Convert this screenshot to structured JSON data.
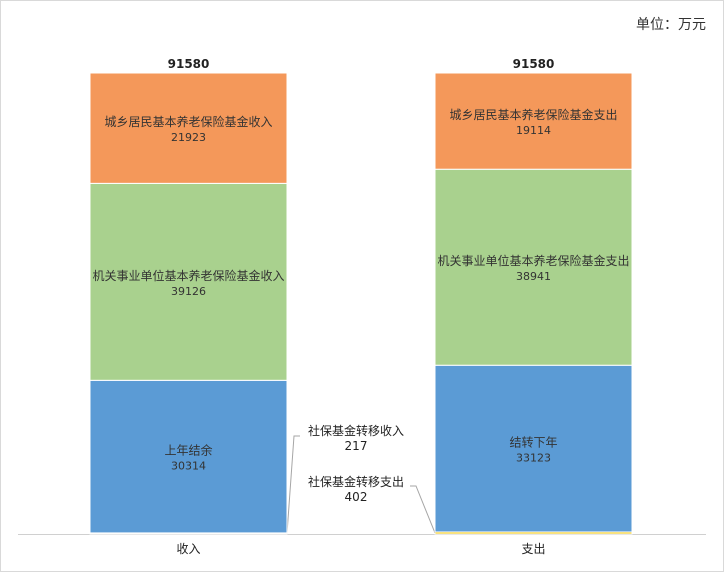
{
  "unit_label": "单位：万元",
  "chart_data": {
    "type": "bar",
    "stacked": true,
    "categories": [
      "收入",
      "支出"
    ],
    "totals": [
      "91580",
      "91580"
    ],
    "ylim": [
      0,
      91580
    ],
    "grid": false,
    "stacks": [
      {
        "category": "收入",
        "segments": [
          {
            "label": "社保基金转移收入",
            "value": 217,
            "color": "#f2c500",
            "callout": true
          },
          {
            "label": "上年结余",
            "value": 30314,
            "color": "#5b9bd5"
          },
          {
            "label": "机关事业单位基本养老保险基金收入",
            "value": 39126,
            "color": "#a9d18e"
          },
          {
            "label": "城乡居民基本养老保险基金收入",
            "value": 21923,
            "color": "#f4985a"
          }
        ]
      },
      {
        "category": "支出",
        "segments": [
          {
            "label": "社保基金转移支出",
            "value": 402,
            "color": "#f2c500",
            "callout": true
          },
          {
            "label": "结转下年",
            "value": 33123,
            "color": "#5b9bd5"
          },
          {
            "label": "机关事业单位基本养老保险基金支出",
            "value": 38941,
            "color": "#a9d18e"
          },
          {
            "label": "城乡居民基本养老保险基金支出",
            "value": 19114,
            "color": "#f4985a"
          }
        ]
      }
    ]
  }
}
